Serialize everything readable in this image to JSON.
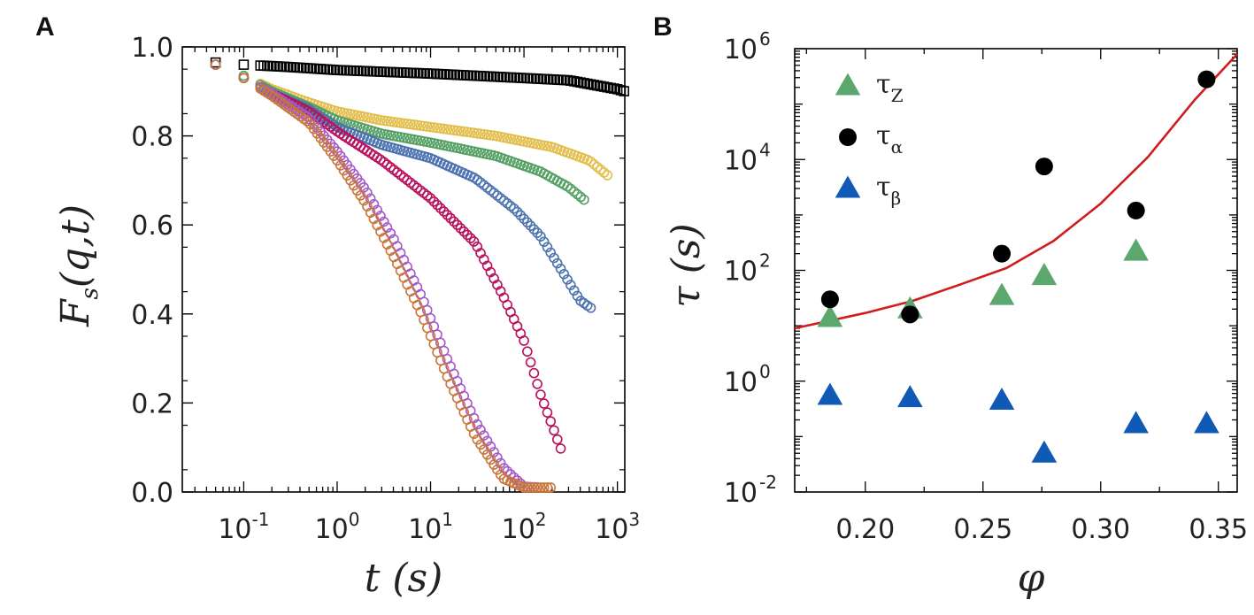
{
  "chart_data": [
    {
      "panel": "A",
      "type": "scatter",
      "xscale": "log",
      "xlim": [
        0.022,
        1200
      ],
      "ylim": [
        0.0,
        1.0
      ],
      "xlabel": "t (s)",
      "ylabel": "F_s(q,t)",
      "ylabel_main": "F",
      "ylabel_sub": "s",
      "ylabel_rest": "(q,t)",
      "yticks": [
        0.0,
        0.2,
        0.4,
        0.6,
        0.8,
        1.0
      ],
      "ytick_labels": [
        "0.0",
        "0.2",
        "0.4",
        "0.6",
        "0.8",
        "1.0"
      ],
      "xticks": [
        0.1,
        1,
        10,
        100,
        1000
      ],
      "xtick_base": "10",
      "xtick_exps": [
        "-1",
        "0",
        "1",
        "2",
        "3"
      ],
      "series": [
        {
          "name": "black",
          "color": "#000000",
          "marker": "square",
          "anchors": [
            [
              0.05,
              0.965
            ],
            [
              0.1,
              0.96
            ],
            [
              0.3,
              0.955
            ],
            [
              1,
              0.948
            ],
            [
              10,
              0.94
            ],
            [
              100,
              0.93
            ],
            [
              300,
              0.925
            ],
            [
              1000,
              0.905
            ],
            [
              1200,
              0.9
            ]
          ]
        },
        {
          "name": "yellow",
          "color": "#E2BE4C",
          "marker": "circle",
          "anchors": [
            [
              0.05,
              0.96
            ],
            [
              0.1,
              0.935
            ],
            [
              0.2,
              0.905
            ],
            [
              0.5,
              0.875
            ],
            [
              1,
              0.855
            ],
            [
              3,
              0.835
            ],
            [
              10,
              0.82
            ],
            [
              50,
              0.8
            ],
            [
              200,
              0.775
            ],
            [
              500,
              0.745
            ],
            [
              800,
              0.71
            ]
          ]
        },
        {
          "name": "green",
          "color": "#55A065",
          "marker": "circle",
          "anchors": [
            [
              0.05,
              0.96
            ],
            [
              0.1,
              0.935
            ],
            [
              0.2,
              0.9
            ],
            [
              0.5,
              0.865
            ],
            [
              1,
              0.835
            ],
            [
              3,
              0.805
            ],
            [
              10,
              0.785
            ],
            [
              50,
              0.755
            ],
            [
              150,
              0.72
            ],
            [
              300,
              0.685
            ],
            [
              450,
              0.655
            ]
          ]
        },
        {
          "name": "blue",
          "color": "#4C73AF",
          "marker": "circle",
          "anchors": [
            [
              0.05,
              0.96
            ],
            [
              0.1,
              0.93
            ],
            [
              0.2,
              0.895
            ],
            [
              0.5,
              0.86
            ],
            [
              1,
              0.82
            ],
            [
              3,
              0.78
            ],
            [
              10,
              0.75
            ],
            [
              30,
              0.705
            ],
            [
              80,
              0.635
            ],
            [
              150,
              0.575
            ],
            [
              250,
              0.5
            ],
            [
              400,
              0.43
            ],
            [
              550,
              0.41
            ]
          ]
        },
        {
          "name": "magenta",
          "color": "#B8105C",
          "marker": "circle",
          "anchors": [
            [
              0.05,
              0.96
            ],
            [
              0.1,
              0.93
            ],
            [
              0.2,
              0.895
            ],
            [
              0.5,
              0.855
            ],
            [
              1,
              0.81
            ],
            [
              3,
              0.745
            ],
            [
              10,
              0.66
            ],
            [
              30,
              0.56
            ],
            [
              60,
              0.44
            ],
            [
              100,
              0.34
            ],
            [
              150,
              0.22
            ],
            [
              200,
              0.15
            ],
            [
              260,
              0.085
            ]
          ]
        },
        {
          "name": "purple",
          "color": "#A559C9",
          "marker": "circle",
          "anchors": [
            [
              0.05,
              0.96
            ],
            [
              0.1,
              0.93
            ],
            [
              0.2,
              0.895
            ],
            [
              0.5,
              0.84
            ],
            [
              1,
              0.765
            ],
            [
              2,
              0.68
            ],
            [
              4,
              0.57
            ],
            [
              8,
              0.44
            ],
            [
              15,
              0.3
            ],
            [
              30,
              0.16
            ],
            [
              60,
              0.055
            ],
            [
              100,
              0.012
            ],
            [
              150,
              0.01
            ]
          ]
        },
        {
          "name": "orange",
          "color": "#C9763A",
          "marker": "circle",
          "anchors": [
            [
              0.05,
              0.96
            ],
            [
              0.1,
              0.93
            ],
            [
              0.2,
              0.89
            ],
            [
              0.5,
              0.83
            ],
            [
              1,
              0.745
            ],
            [
              2,
              0.65
            ],
            [
              4,
              0.53
            ],
            [
              8,
              0.4
            ],
            [
              15,
              0.26
            ],
            [
              30,
              0.125
            ],
            [
              60,
              0.03
            ],
            [
              100,
              0.01
            ],
            [
              200,
              0.01
            ]
          ]
        }
      ]
    },
    {
      "panel": "B",
      "type": "scatter",
      "yscale": "log",
      "xlim": [
        0.17,
        0.358
      ],
      "ylim": [
        0.01,
        1000000
      ],
      "xlabel": "φ",
      "ylabel": "τ (s)",
      "xticks": [
        0.2,
        0.25,
        0.3,
        0.35
      ],
      "xtick_labels": [
        "0.20",
        "0.25",
        "0.30",
        "0.35"
      ],
      "yticks": [
        0.01,
        1,
        100,
        10000,
        1000000
      ],
      "ytick_base": "10",
      "ytick_exps": [
        "-2",
        "0",
        "2",
        "4",
        "6"
      ],
      "series": [
        {
          "name": "τ_Z",
          "symbol": "τ",
          "sub": "Z",
          "color": "#5BA86E",
          "marker": "triangle",
          "x": [
            0.185,
            0.219,
            0.258,
            0.276,
            0.315
          ],
          "y": [
            14,
            20,
            35,
            80,
            220
          ]
        },
        {
          "name": "τ_α",
          "symbol": "τ",
          "sub": "α",
          "color": "#000000",
          "marker": "circle",
          "x": [
            0.185,
            0.219,
            0.258,
            0.276,
            0.315,
            0.345
          ],
          "y": [
            30,
            16,
            200,
            7500,
            1200,
            280000
          ]
        },
        {
          "name": "τ_β",
          "symbol": "τ",
          "sub": "β",
          "color": "#1059B5",
          "marker": "triangle",
          "x": [
            0.185,
            0.219,
            0.258,
            0.276,
            0.315,
            0.345
          ],
          "y": [
            0.55,
            0.5,
            0.45,
            0.05,
            0.17,
            0.17
          ]
        }
      ],
      "fit": {
        "name": "fit",
        "color": "#D01C1C",
        "type": "line",
        "x": [
          0.17,
          0.2,
          0.22,
          0.24,
          0.26,
          0.28,
          0.3,
          0.32,
          0.34,
          0.358
        ],
        "y": [
          9,
          17,
          28,
          55,
          110,
          340,
          1600,
          11000,
          120000,
          800000
        ]
      },
      "legend": "top-left"
    }
  ],
  "labels": {
    "panel_a": "A",
    "panel_b": "B"
  }
}
